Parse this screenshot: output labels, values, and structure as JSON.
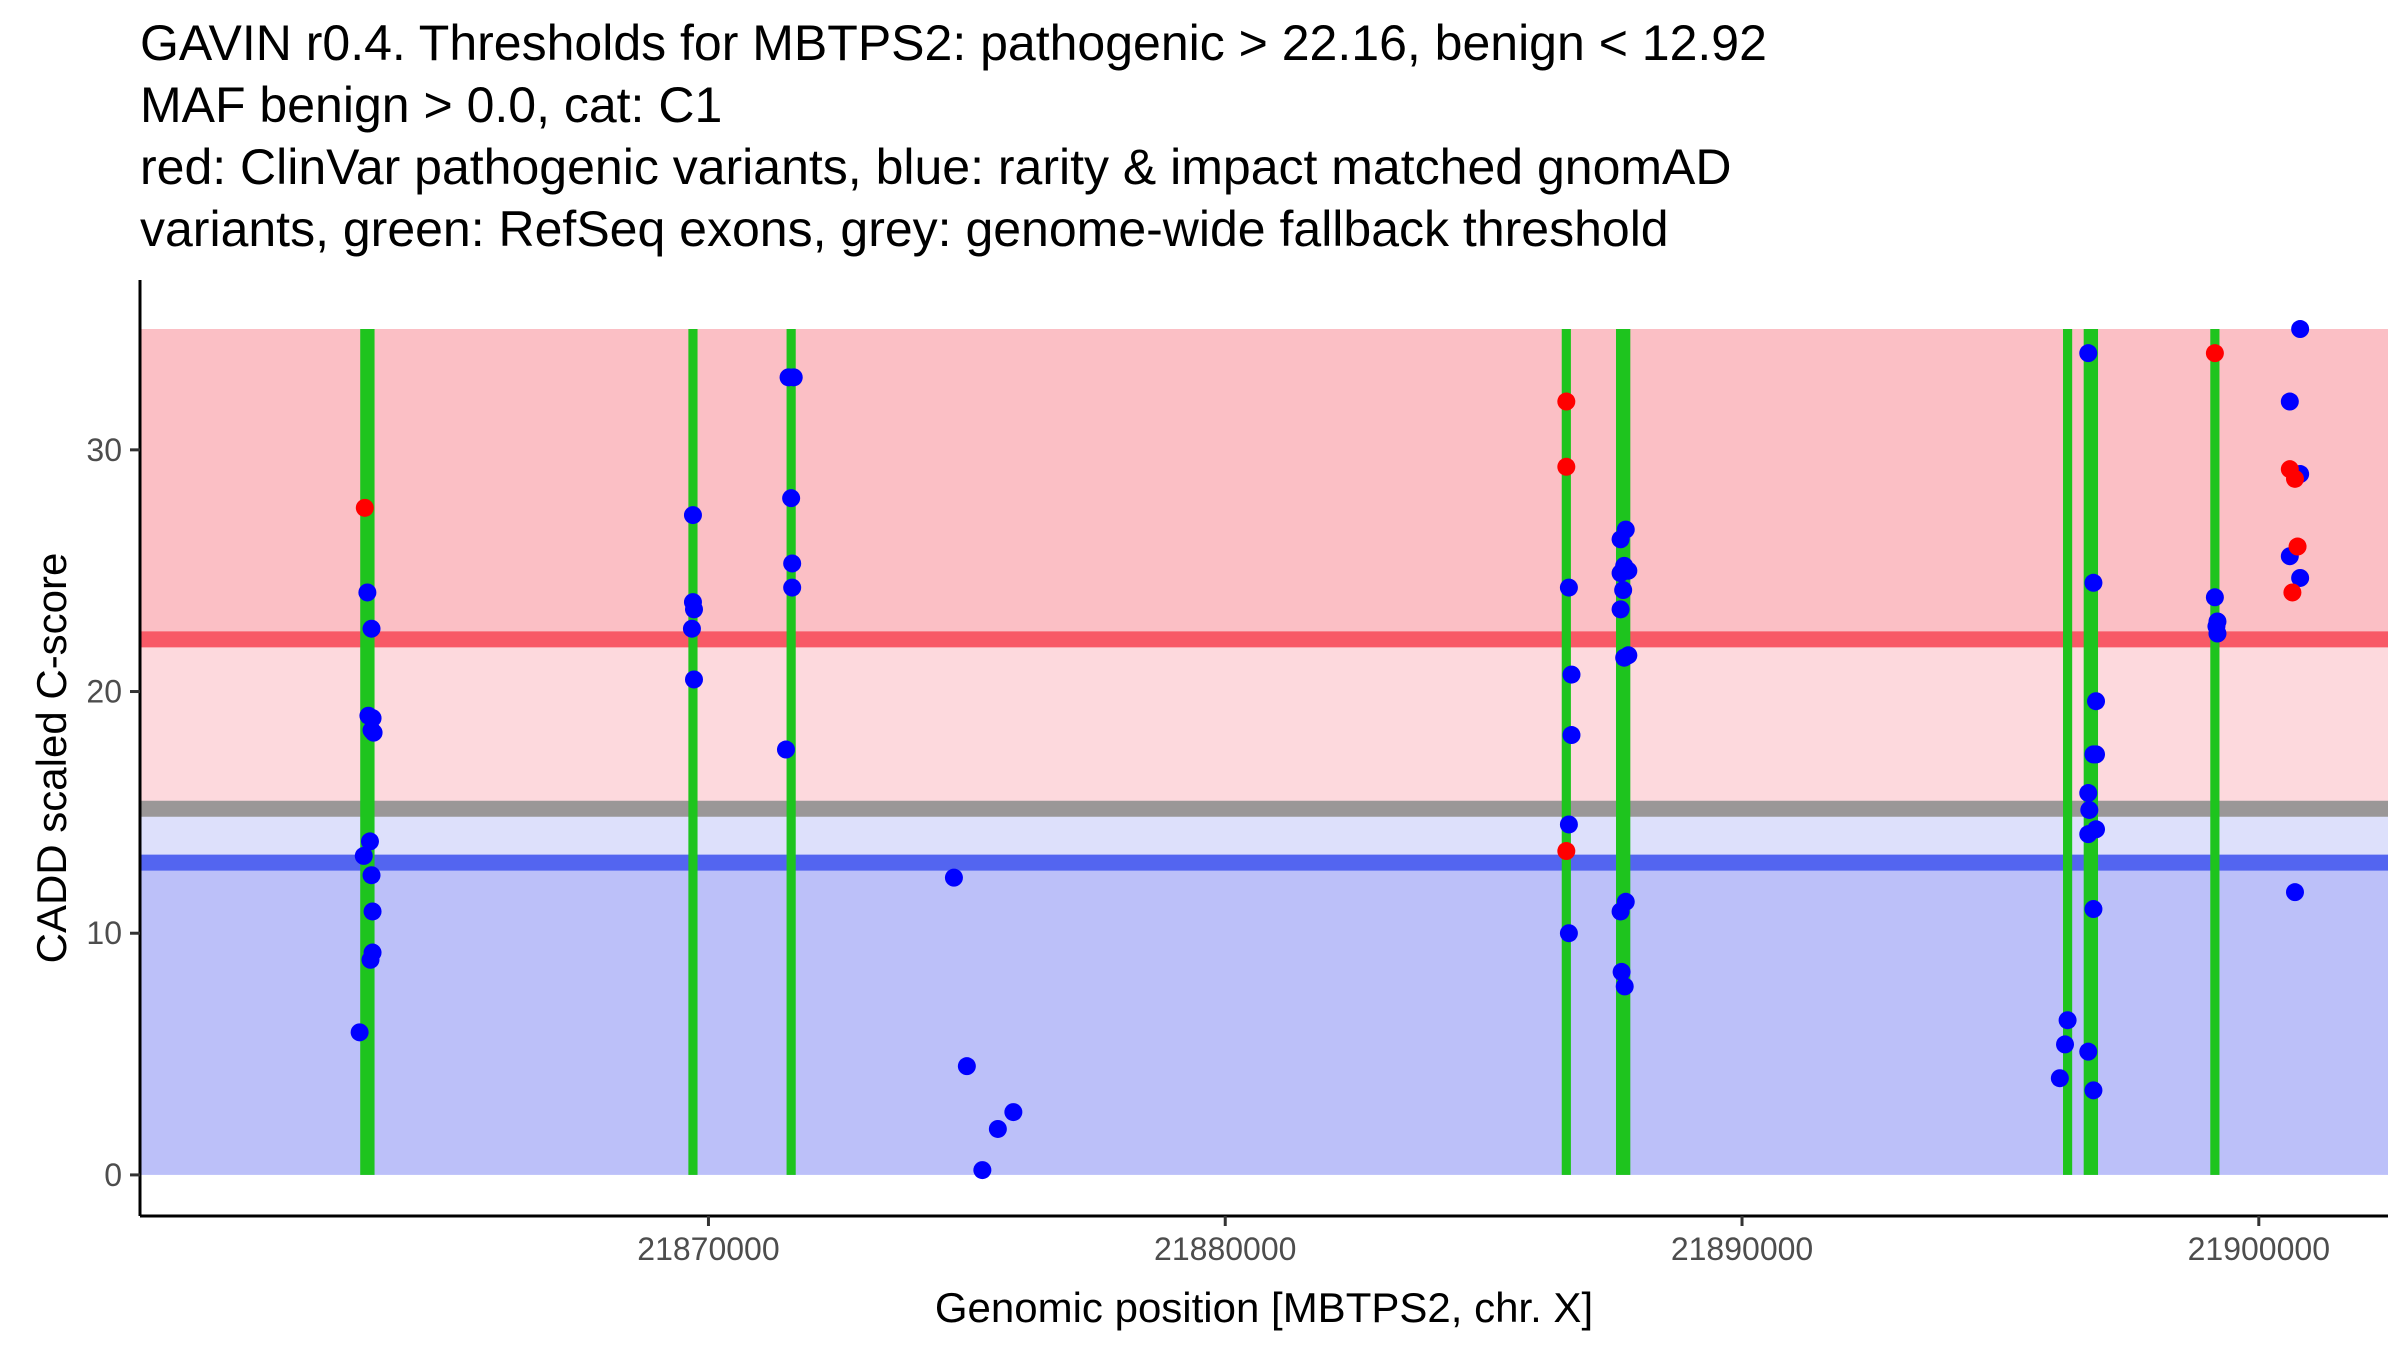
{
  "chart_data": {
    "type": "scatter",
    "title_lines": [
      "GAVIN r0.4. Thresholds for MBTPS2: pathogenic > 22.16, benign < 12.92",
      "MAF benign > 0.0, cat: C1",
      "red: ClinVar pathogenic variants, blue: rarity & impact matched gnomAD",
      "variants, green: RefSeq exons, grey: genome-wide fallback threshold"
    ],
    "xlabel": "Genomic position [MBTPS2, chr. X]",
    "ylabel": "CADD scaled C-score",
    "xlim": [
      21859000,
      21902500
    ],
    "ylim": [
      -1.7,
      36.2
    ],
    "x_ticks": [
      21870000,
      21880000,
      21890000,
      21900000
    ],
    "x_tick_labels": [
      "21870000",
      "21880000",
      "21890000",
      "21900000"
    ],
    "y_ticks": [
      0,
      10,
      20,
      30
    ],
    "y_tick_labels": [
      "0",
      "10",
      "20",
      "30"
    ],
    "thresholds": {
      "pathogenic": 22.16,
      "benign": 12.92,
      "genome_wide_fallback": 15.15,
      "max_score": 35
    },
    "colors": {
      "pathogenic_zone": "#fbbfc5",
      "pathogenic_mid_zone": "#fdd9dd",
      "benign_mid_zone": "#dde0fb",
      "benign_zone": "#bcc0f9",
      "pathogenic_line": "#f85966",
      "benign_line": "#5365f0",
      "fallback_line": "#9a9797",
      "exon": "#1ec41e",
      "pathogenic_point": "#ff0000",
      "benign_point": "#0000ff"
    },
    "exons": [
      [
        21863300,
        21863500
      ],
      [
        21869650,
        21869750
      ],
      [
        21871550,
        21871650
      ],
      [
        21886550,
        21886650
      ],
      [
        21887600,
        21887800
      ],
      [
        21896250,
        21896350
      ],
      [
        21896650,
        21896850
      ],
      [
        21899100,
        21899200
      ]
    ],
    "series": [
      {
        "name": "ClinVar pathogenic variants",
        "color": "#ff0000",
        "points": [
          [
            21863350,
            27.6
          ],
          [
            21886600,
            32.0
          ],
          [
            21886600,
            29.3
          ],
          [
            21886600,
            13.4
          ],
          [
            21899150,
            34.0
          ],
          [
            21900600,
            29.2
          ],
          [
            21900700,
            28.8
          ],
          [
            21900750,
            26.0
          ],
          [
            21900650,
            24.1
          ]
        ]
      },
      {
        "name": "rarity & impact matched gnomAD variants",
        "color": "#0000ff",
        "points": [
          [
            21863400,
            24.1
          ],
          [
            21863480,
            22.6
          ],
          [
            21863420,
            19.0
          ],
          [
            21863500,
            18.9
          ],
          [
            21863480,
            18.4
          ],
          [
            21863520,
            18.3
          ],
          [
            21863450,
            13.8
          ],
          [
            21863330,
            13.2
          ],
          [
            21863480,
            12.4
          ],
          [
            21863500,
            10.9
          ],
          [
            21863500,
            9.2
          ],
          [
            21863460,
            8.9
          ],
          [
            21863250,
            5.9
          ],
          [
            21869700,
            27.3
          ],
          [
            21869700,
            23.7
          ],
          [
            21869720,
            23.4
          ],
          [
            21869680,
            22.6
          ],
          [
            21869720,
            20.5
          ],
          [
            21871550,
            33.0
          ],
          [
            21871650,
            33.0
          ],
          [
            21871600,
            28.0
          ],
          [
            21871620,
            25.3
          ],
          [
            21871620,
            24.3
          ],
          [
            21871500,
            17.6
          ],
          [
            21874750,
            12.3
          ],
          [
            21875000,
            4.5
          ],
          [
            21875300,
            0.2
          ],
          [
            21875600,
            1.9
          ],
          [
            21875900,
            2.6
          ],
          [
            21886650,
            24.3
          ],
          [
            21886700,
            20.7
          ],
          [
            21886700,
            18.2
          ],
          [
            21886650,
            14.5
          ],
          [
            21886650,
            10.0
          ],
          [
            21887650,
            26.3
          ],
          [
            21887750,
            26.7
          ],
          [
            21887650,
            24.9
          ],
          [
            21887720,
            25.2
          ],
          [
            21887800,
            25.0
          ],
          [
            21887700,
            24.2
          ],
          [
            21887650,
            23.4
          ],
          [
            21887720,
            21.4
          ],
          [
            21887800,
            21.5
          ],
          [
            21887650,
            10.9
          ],
          [
            21887750,
            11.3
          ],
          [
            21887670,
            8.4
          ],
          [
            21887730,
            7.8
          ],
          [
            21896700,
            34.0
          ],
          [
            21896800,
            24.5
          ],
          [
            21896850,
            19.6
          ],
          [
            21896800,
            17.4
          ],
          [
            21896850,
            17.4
          ],
          [
            21896700,
            15.8
          ],
          [
            21896720,
            15.1
          ],
          [
            21896700,
            14.1
          ],
          [
            21896850,
            14.3
          ],
          [
            21896800,
            11.0
          ],
          [
            21896300,
            6.4
          ],
          [
            21896250,
            5.4
          ],
          [
            21896150,
            4.0
          ],
          [
            21896700,
            5.1
          ],
          [
            21896800,
            3.5
          ],
          [
            21899150,
            23.9
          ],
          [
            21899200,
            22.9
          ],
          [
            21899180,
            22.7
          ],
          [
            21899200,
            22.4
          ],
          [
            21900600,
            32.0
          ],
          [
            21900800,
            35.0
          ],
          [
            21900800,
            29.0
          ],
          [
            21900600,
            25.6
          ],
          [
            21900800,
            24.7
          ],
          [
            21900700,
            11.7
          ]
        ]
      }
    ]
  }
}
